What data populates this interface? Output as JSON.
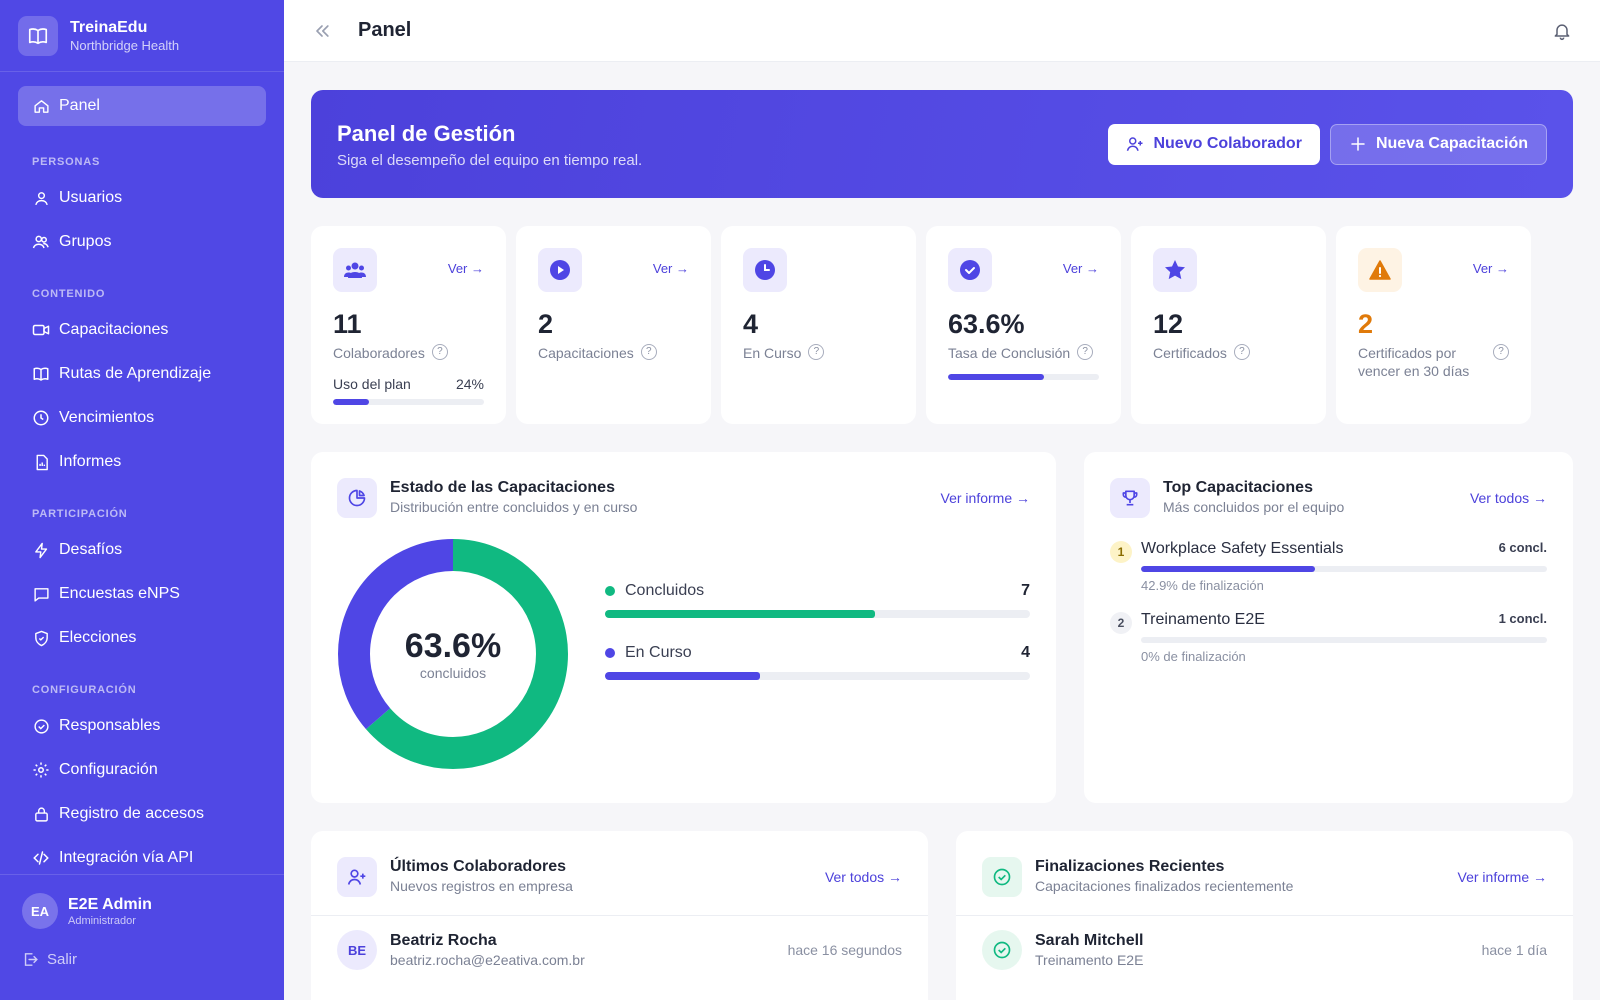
{
  "app": {
    "name": "TreinaEdu",
    "org": "Northbridge Health"
  },
  "sidebar": {
    "active": {
      "label": "Panel",
      "icon": "home-icon"
    },
    "sections": [
      {
        "title": "PERSONAS",
        "items": [
          {
            "label": "Usuarios",
            "icon": "user-icon"
          },
          {
            "label": "Grupos",
            "icon": "users-icon"
          }
        ]
      },
      {
        "title": "CONTENIDO",
        "items": [
          {
            "label": "Capacitaciones",
            "icon": "video-icon"
          },
          {
            "label": "Rutas de Aprendizaje",
            "icon": "map-icon"
          },
          {
            "label": "Vencimientos",
            "icon": "clock-icon"
          },
          {
            "label": "Informes",
            "icon": "report-icon"
          }
        ]
      },
      {
        "title": "PARTICIPACIÓN",
        "items": [
          {
            "label": "Desafíos",
            "icon": "bolt-icon"
          },
          {
            "label": "Encuestas eNPS",
            "icon": "chat-icon"
          },
          {
            "label": "Elecciones",
            "icon": "shield-icon"
          }
        ]
      },
      {
        "title": "CONFIGURACIÓN",
        "items": [
          {
            "label": "Responsables",
            "icon": "check-circle-icon"
          },
          {
            "label": "Configuración",
            "icon": "gear-icon"
          },
          {
            "label": "Registro de accesos",
            "icon": "lock-icon"
          },
          {
            "label": "Integración vía API",
            "icon": "code-icon"
          }
        ]
      }
    ],
    "user": {
      "initials": "EA",
      "name": "E2E Admin",
      "role": "Administrador"
    },
    "logout": "Salir"
  },
  "topbar": {
    "title": "Panel"
  },
  "hero": {
    "title": "Panel de Gestión",
    "subtitle": "Siga el desempeño del equipo en tiempo real.",
    "btn_new_collab": "Nuevo Colaborador",
    "btn_new_training": "Nueva Capacitación"
  },
  "stats": {
    "link": "Ver →",
    "collaborators": {
      "value": "11",
      "label": "Colaboradores",
      "usage_label": "Uso del plan",
      "usage_pct": "24%",
      "usage_fraction": 0.24
    },
    "trainings": {
      "value": "2",
      "label": "Capacitaciones"
    },
    "in_progress": {
      "value": "4",
      "label": "En Curso"
    },
    "completion": {
      "value": "63.6%",
      "label": "Tasa de Conclusión",
      "fraction": 0.636
    },
    "certificates": {
      "value": "12",
      "label": "Certificados"
    },
    "expiring": {
      "value": "2",
      "label": "Certificados por vencer en 30 días"
    }
  },
  "status_card": {
    "title": "Estado de las Capacitaciones",
    "subtitle": "Distribución entre concluidos y en curso",
    "link": "Ver informe →",
    "center_value": "63.6%",
    "center_label": "concluidos",
    "completed": {
      "label": "Concluidos",
      "value": "7",
      "color": "#10b981"
    },
    "in_progress": {
      "label": "En Curso",
      "value": "4",
      "color": "#4f46e5"
    }
  },
  "top_card": {
    "title": "Top Capacitaciones",
    "subtitle": "Más concluidos por el equipo",
    "link": "Ver todos →",
    "items": [
      {
        "rank": "1",
        "name": "Workplace Safety Essentials",
        "count": "6 concl.",
        "pct_text": "42.9% de finalización",
        "fraction": 0.429
      },
      {
        "rank": "2",
        "name": "Treinamento E2E",
        "count": "1 concl.",
        "pct_text": "0% de finalización",
        "fraction": 0
      }
    ]
  },
  "recent_users": {
    "title": "Últimos Colaboradores",
    "subtitle": "Nuevos registros en empresa",
    "link": "Ver todos →",
    "items": [
      {
        "initials": "BE",
        "name": "Beatriz Rocha",
        "email": "beatriz.rocha@e2eativa.com.br",
        "time": "hace 16 segundos"
      }
    ]
  },
  "recent_completions": {
    "title": "Finalizaciones Recientes",
    "subtitle": "Capacitaciones finalizados recientemente",
    "link": "Ver informe →",
    "items": [
      {
        "name": "Sarah Mitchell",
        "course": "Treinamento E2E",
        "time": "hace 1 día"
      }
    ]
  },
  "colors": {
    "primary": "#4f46e5",
    "sidebar": "#5048e5",
    "success": "#10b981",
    "warning": "#e07a0a"
  }
}
